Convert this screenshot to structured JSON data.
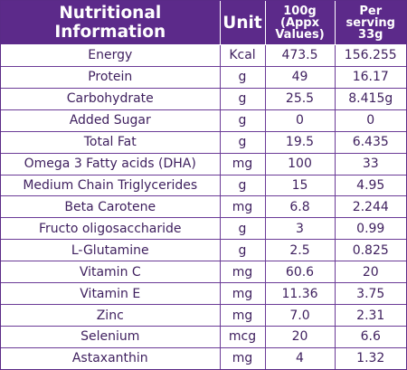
{
  "header": {
    "nutrient": "Nutritional Information",
    "unit": "Unit",
    "per_100g": "100g\n(Appx\nValues)",
    "per_serving": "Per\nserving\n33g"
  },
  "rows": [
    {
      "name": "Energy",
      "unit": "Kcal",
      "per_100g": "473.5",
      "per_serving": "156.255"
    },
    {
      "name": "Protein",
      "unit": "g",
      "per_100g": "49",
      "per_serving": "16.17"
    },
    {
      "name": "Carbohydrate",
      "unit": "g",
      "per_100g": "25.5",
      "per_serving": "8.415g"
    },
    {
      "name": "Added Sugar",
      "unit": "g",
      "per_100g": "0",
      "per_serving": "0"
    },
    {
      "name": "Total Fat",
      "unit": "g",
      "per_100g": "19.5",
      "per_serving": "6.435"
    },
    {
      "name": "Omega 3 Fatty acids (DHA)",
      "unit": "mg",
      "per_100g": "100",
      "per_serving": "33"
    },
    {
      "name": "Medium Chain Triglycerides",
      "unit": "g",
      "per_100g": "15",
      "per_serving": "4.95"
    },
    {
      "name": "Beta Carotene",
      "unit": "mg",
      "per_100g": "6.8",
      "per_serving": "2.244"
    },
    {
      "name": "Fructo oligosaccharide",
      "unit": "g",
      "per_100g": "3",
      "per_serving": "0.99"
    },
    {
      "name": "L-Glutamine",
      "unit": "g",
      "per_100g": "2.5",
      "per_serving": "0.825"
    },
    {
      "name": "Vitamin C",
      "unit": "mg",
      "per_100g": "60.6",
      "per_serving": "20"
    },
    {
      "name": "Vitamin E",
      "unit": "mg",
      "per_100g": "11.36",
      "per_serving": "3.75"
    },
    {
      "name": "Zinc",
      "unit": "mg",
      "per_100g": "7.0",
      "per_serving": "2.31"
    },
    {
      "name": "Selenium",
      "unit": "mcg",
      "per_100g": "20",
      "per_serving": "6.6"
    },
    {
      "name": "Astaxanthin",
      "unit": "mg",
      "per_100g": "4",
      "per_serving": "1.32"
    }
  ],
  "colors": {
    "header_bg": "#5c2a8a",
    "text": "#3e1f5e",
    "border": "#6b3b97"
  }
}
